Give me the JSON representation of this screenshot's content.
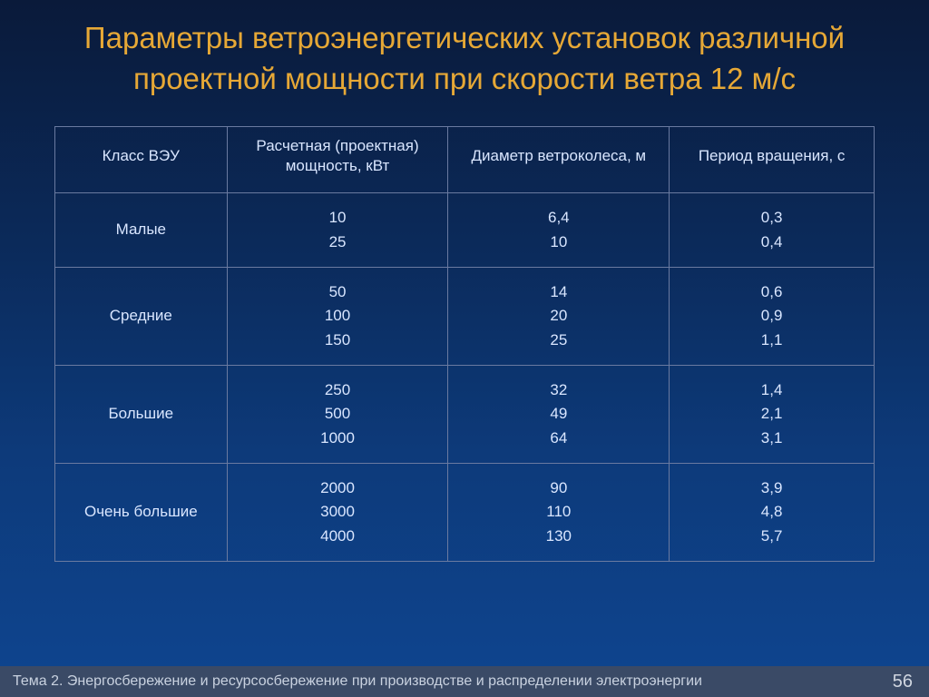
{
  "colors": {
    "title": "#e6a836",
    "header_text": "#d9e6ff",
    "cell_text": "#d9e6ff",
    "row_label_text": "#d9e6ff",
    "border": "#6a7aa0",
    "footer_bg": "#3a4a66",
    "footer_text": "#c9d2e0",
    "page_text": "#d0d6e0"
  },
  "title": "Параметры ветроэнергетических установок различной проектной мощности\nпри скорости ветра 12 м/с",
  "table": {
    "columns": [
      "Класс ВЭУ",
      "Расчетная  (проектная) мощность, кВт",
      "Диаметр ветроколеса, м",
      "Период вращения, с"
    ],
    "col_widths": [
      "21%",
      "27%",
      "27%",
      "25%"
    ],
    "rows": [
      {
        "label": "Малые",
        "power": "10\n25",
        "diameter": "6,4\n10",
        "period": "0,3\n0,4"
      },
      {
        "label": "Средние",
        "power": "50\n100\n150",
        "diameter": "14\n20\n25",
        "period": "0,6\n0,9\n1,1"
      },
      {
        "label": "Большие",
        "power": "250\n500\n1000",
        "diameter": "32\n49\n64",
        "period": "1,4\n2,1\n3,1"
      },
      {
        "label": "Очень большие",
        "power": "2000\n3000\n4000",
        "diameter": "90\n110\n130",
        "period": "3,9\n4,8\n5,7"
      }
    ]
  },
  "footer": {
    "topic": "Тема 2. Энергосбережение и ресурсосбережение при производстве и распределении электроэнергии",
    "page": "56"
  }
}
